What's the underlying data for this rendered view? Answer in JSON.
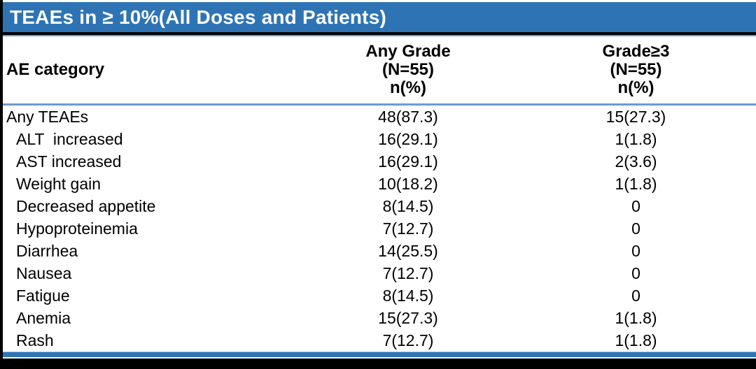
{
  "title": "TEAEs in ≥ 10%(All Doses and Patients)",
  "table": {
    "category_header": "AE category",
    "column_headers": [
      {
        "grade": "Any Grade",
        "n": "(N=55)",
        "metric": "n(%)"
      },
      {
        "grade": "Grade≥3",
        "n": "(N=55)",
        "metric": "n(%)"
      }
    ],
    "rows": [
      {
        "category": "Any TEAEs",
        "indent": false,
        "any_grade": "48(87.3)",
        "grade3": "15(27.3)"
      },
      {
        "category": "ALT  increased",
        "indent": true,
        "any_grade": "16(29.1)",
        "grade3": "1(1.8)"
      },
      {
        "category": "AST increased",
        "indent": true,
        "any_grade": "16(29.1)",
        "grade3": "2(3.6)"
      },
      {
        "category": "Weight gain",
        "indent": true,
        "any_grade": "10(18.2)",
        "grade3": "1(1.8)"
      },
      {
        "category": "Decreased appetite",
        "indent": true,
        "any_grade": "8(14.5)",
        "grade3": "0"
      },
      {
        "category": "Hypoproteinemia",
        "indent": true,
        "any_grade": "7(12.7)",
        "grade3": "0"
      },
      {
        "category": "Diarrhea",
        "indent": true,
        "any_grade": "14(25.5)",
        "grade3": "0"
      },
      {
        "category": "Nausea",
        "indent": true,
        "any_grade": "7(12.7)",
        "grade3": "0"
      },
      {
        "category": "Fatigue",
        "indent": true,
        "any_grade": "8(14.5)",
        "grade3": "0"
      },
      {
        "category": "Anemia",
        "indent": true,
        "any_grade": "15(27.3)",
        "grade3": "1(1.8)"
      },
      {
        "category": "Rash",
        "indent": true,
        "any_grade": "7(12.7)",
        "grade3": "1(1.8)"
      }
    ]
  },
  "colors": {
    "title_bar_blue": "#2E74B5",
    "rule_blue": "#6B9BD2",
    "bottom_bar_blue": "#2E74B5",
    "bottom_bar_highlight": "#9DC3E6",
    "frame_black": "#000000",
    "title_text": "#FFFFFF",
    "body_text": "#000000"
  }
}
